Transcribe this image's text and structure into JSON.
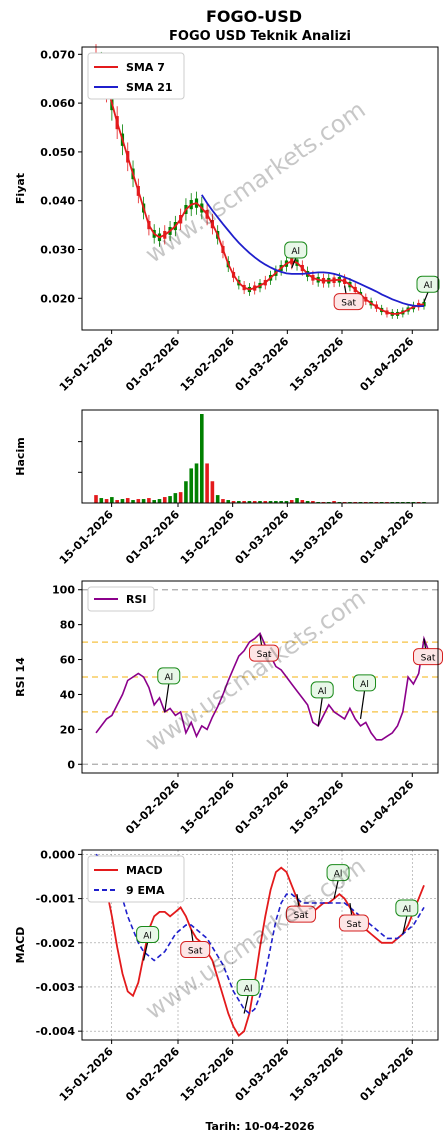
{
  "page": {
    "title": "FOGO-USD",
    "footer": "Tarih: 10-04-2026",
    "watermark": "www.uscmarkets.com"
  },
  "chart_data": [
    {
      "type": "line",
      "title": "FOGO USD Teknik Analizi",
      "ylabel": "Fiyat",
      "ylim": [
        0.0135,
        0.0715
      ],
      "x_ticks": [
        "15-01-2026",
        "01-02-2026",
        "15-02-2026",
        "01-03-2026",
        "15-03-2026",
        "01-04-2026"
      ],
      "y_ticks": [
        "0.020",
        "0.030",
        "0.040",
        "0.050",
        "0.060",
        "0.070"
      ],
      "x_start": "2026-01-11",
      "legend": "top-left",
      "series": [
        {
          "name": "SMA 7",
          "color": "#e31a1c",
          "values": [
            0.068,
            0.0665,
            0.064,
            0.06,
            0.056,
            0.0525,
            0.049,
            0.0455,
            0.042,
            0.0385,
            0.035,
            0.0332,
            0.0325,
            0.033,
            0.0338,
            0.0348,
            0.0362,
            0.0382,
            0.0392,
            0.0395,
            0.0385,
            0.0372,
            0.0352,
            0.033,
            0.03,
            0.027,
            0.0248,
            0.0232,
            0.0222,
            0.0218,
            0.0221,
            0.0226,
            0.0232,
            0.0242,
            0.0252,
            0.0262,
            0.0271,
            0.0276,
            0.0273,
            0.0262,
            0.025,
            0.0242,
            0.0238,
            0.0236,
            0.0236,
            0.0237,
            0.0238,
            0.0235,
            0.0228,
            0.0218,
            0.0208,
            0.0198,
            0.019,
            0.0183,
            0.0176,
            0.0171,
            0.0168,
            0.0168,
            0.0171,
            0.0177,
            0.0182,
            0.0186,
            0.0188
          ]
        },
        {
          "name": "SMA 21",
          "color": "#1f1fcc",
          "values": [
            null,
            null,
            null,
            null,
            null,
            null,
            null,
            null,
            null,
            null,
            null,
            null,
            null,
            null,
            null,
            null,
            null,
            null,
            null,
            null,
            0.0412,
            0.0395,
            0.038,
            0.0366,
            0.0352,
            0.0339,
            0.0326,
            0.0314,
            0.0303,
            0.0293,
            0.0284,
            0.0276,
            0.0269,
            0.0263,
            0.0258,
            0.0254,
            0.0251,
            0.025,
            0.025,
            0.025,
            0.0251,
            0.0252,
            0.0253,
            0.0253,
            0.0252,
            0.025,
            0.0247,
            0.0243,
            0.0239,
            0.0234,
            0.0229,
            0.0224,
            0.0219,
            0.0214,
            0.0208,
            0.0203,
            0.0198,
            0.0194,
            0.019,
            0.0187,
            0.0185,
            0.0184,
            0.0184
          ]
        }
      ],
      "annotations": [
        {
          "label": "Al",
          "x": 37,
          "y": 0.0262,
          "color": "#1a8a1a"
        },
        {
          "label": "Sat",
          "x": 47,
          "y": 0.0226,
          "color": "#d42020"
        },
        {
          "label": "Al",
          "x": 62,
          "y": 0.0192,
          "color": "#1a8a1a"
        }
      ]
    },
    {
      "type": "bar",
      "title": "",
      "ylabel": "Hacim",
      "x_ticks": [
        "15-01-2026",
        "01-02-2026",
        "15-02-2026",
        "01-03-2026",
        "15-03-2026",
        "01-04-2026"
      ],
      "values": [
        8,
        5,
        4,
        6,
        3,
        4,
        5,
        3,
        4,
        4,
        5,
        3,
        4,
        6,
        7,
        10,
        11,
        22,
        35,
        40,
        90,
        40,
        22,
        8,
        4,
        3,
        2,
        2,
        2,
        2,
        2,
        2,
        2,
        2,
        2,
        2,
        2,
        3,
        5,
        3,
        2,
        2,
        1,
        1,
        1,
        2,
        1,
        1,
        1,
        1,
        1,
        1,
        1,
        1,
        1,
        1,
        1,
        1,
        1,
        1,
        1,
        1,
        1
      ],
      "up": [
        0,
        1,
        0,
        1,
        0,
        1,
        0,
        1,
        0,
        1,
        0,
        1,
        1,
        0,
        1,
        1,
        0,
        1,
        1,
        1,
        1,
        0,
        0,
        1,
        0,
        1,
        0,
        1,
        0,
        1,
        0,
        1,
        0,
        1,
        1,
        1,
        1,
        0,
        1,
        0,
        1,
        0,
        1,
        0,
        1,
        0,
        1,
        0,
        1,
        0,
        1,
        0,
        1,
        0,
        1,
        0,
        1,
        1,
        1,
        1,
        1,
        0,
        1
      ],
      "colors": {
        "up": "#008000",
        "down": "#e31a1c"
      }
    },
    {
      "type": "line",
      "title": "",
      "ylabel": "RSI 14",
      "ylim": [
        -5,
        105
      ],
      "x_ticks": [
        "01-02-2026",
        "15-02-2026",
        "01-03-2026",
        "15-03-2026",
        "01-04-2026"
      ],
      "y_ticks": [
        "0",
        "20",
        "40",
        "60",
        "80",
        "100"
      ],
      "legend": "top-left",
      "series": [
        {
          "name": "RSI",
          "color": "#8b008b",
          "values": [
            18,
            22,
            26,
            28,
            34,
            40,
            48,
            50,
            52,
            50,
            44,
            34,
            38,
            30,
            32,
            28,
            30,
            18,
            24,
            16,
            22,
            20,
            27,
            33,
            40,
            48,
            55,
            62,
            65,
            70,
            72,
            75,
            68,
            62,
            56,
            54,
            50,
            46,
            42,
            38,
            34,
            24,
            22,
            28,
            34,
            30,
            28,
            26,
            32,
            26,
            22,
            24,
            18,
            14,
            14,
            16,
            18,
            22,
            30,
            50,
            46,
            52,
            72,
            64
          ]
        },
        {
          "name": "",
          "color": "#bbbbbb",
          "values": []
        }
      ],
      "hlines": [
        {
          "y": 0,
          "color": "#aaaaaa"
        },
        {
          "y": 30,
          "color": "#f5c242"
        },
        {
          "y": 50,
          "color": "#f5c242"
        },
        {
          "y": 70,
          "color": "#f5c242"
        },
        {
          "y": 100,
          "color": "#aaaaaa"
        }
      ],
      "annotations": [
        {
          "label": "Al",
          "x": 13,
          "y": 30,
          "color": "#1a8a1a"
        },
        {
          "label": "Sat",
          "x": 31,
          "y": 74,
          "color": "#d42020"
        },
        {
          "label": "Al",
          "x": 42,
          "y": 22,
          "color": "#1a8a1a"
        },
        {
          "label": "Al",
          "x": 50,
          "y": 26,
          "color": "#1a8a1a"
        },
        {
          "label": "Sat",
          "x": 62,
          "y": 72,
          "color": "#d42020"
        }
      ]
    },
    {
      "type": "line",
      "title": "",
      "ylabel": "MACD",
      "ylim": [
        -0.0042,
        0.0001
      ],
      "x_ticks": [
        "15-01-2026",
        "01-02-2026",
        "15-02-2026",
        "01-03-2026",
        "15-03-2026",
        "01-04-2026"
      ],
      "y_ticks": [
        "0.000",
        "-0.001",
        "-0.002",
        "-0.003",
        "-0.004"
      ],
      "legend": "top-left",
      "series": [
        {
          "name": "MACD",
          "color": "#e31a1c",
          "values": [
            -0.0002,
            -0.0004,
            -0.0008,
            -0.0014,
            -0.0021,
            -0.0027,
            -0.0031,
            -0.0032,
            -0.0029,
            -0.0023,
            -0.0017,
            -0.0014,
            -0.0013,
            -0.0013,
            -0.0014,
            -0.0013,
            -0.0012,
            -0.0014,
            -0.0017,
            -0.0019,
            -0.002,
            -0.0022,
            -0.0024,
            -0.0028,
            -0.0032,
            -0.0036,
            -0.0039,
            -0.0041,
            -0.004,
            -0.0036,
            -0.0029,
            -0.0021,
            -0.0014,
            -0.0008,
            -0.0004,
            -0.0003,
            -0.0004,
            -0.0007,
            -0.001,
            -0.0013,
            -0.0014,
            -0.0013,
            -0.0012,
            -0.0011,
            -0.0011,
            -0.001,
            -0.0009,
            -0.001,
            -0.0012,
            -0.0014,
            -0.0016,
            -0.0017,
            -0.0018,
            -0.0019,
            -0.002,
            -0.002,
            -0.002,
            -0.0019,
            -0.0018,
            -0.0016,
            -0.0013,
            -0.001,
            -0.0007
          ]
        },
        {
          "name": "9 EMA",
          "color": "#1f1fcc",
          "values": [
            0.0,
            -0.0001,
            -0.0002,
            -0.0004,
            -0.0007,
            -0.001,
            -0.0014,
            -0.0017,
            -0.002,
            -0.0022,
            -0.0023,
            -0.0024,
            -0.0023,
            -0.0022,
            -0.002,
            -0.0018,
            -0.0017,
            -0.0016,
            -0.0016,
            -0.0017,
            -0.0018,
            -0.0019,
            -0.0021,
            -0.0023,
            -0.0025,
            -0.0028,
            -0.0031,
            -0.0033,
            -0.0035,
            -0.0036,
            -0.0035,
            -0.0032,
            -0.0027,
            -0.0021,
            -0.0015,
            -0.0011,
            -0.0009,
            -0.0009,
            -0.001,
            -0.0011,
            -0.0011,
            -0.0011,
            -0.0011,
            -0.0011,
            -0.0011,
            -0.0011,
            -0.0011,
            -0.0011,
            -0.0012,
            -0.0013,
            -0.0014,
            -0.0015,
            -0.0016,
            -0.0017,
            -0.0018,
            -0.0019,
            -0.0019,
            -0.0019,
            -0.0018,
            -0.0017,
            -0.0016,
            -0.0014,
            -0.0012
          ]
        }
      ],
      "annotations": [
        {
          "label": "Sat",
          "x": 1,
          "y": -0.0002,
          "color": "#d42020"
        },
        {
          "label": "Al",
          "x": 9,
          "y": -0.0024,
          "color": "#1a8a1a"
        },
        {
          "label": "Sat",
          "x": 18,
          "y": -0.0017,
          "color": "#d42020"
        },
        {
          "label": "Al",
          "x": 28,
          "y": -0.0036,
          "color": "#1a8a1a"
        },
        {
          "label": "Sat",
          "x": 38,
          "y": -0.0009,
          "color": "#d42020"
        },
        {
          "label": "Al",
          "x": 45,
          "y": -0.001,
          "color": "#1a8a1a"
        },
        {
          "label": "Sat",
          "x": 48,
          "y": -0.0011,
          "color": "#d42020"
        },
        {
          "label": "Al",
          "x": 58,
          "y": -0.0018,
          "color": "#1a8a1a"
        }
      ]
    }
  ]
}
